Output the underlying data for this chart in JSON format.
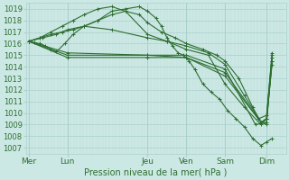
{
  "background_color": "#cce8e4",
  "grid_color_major": "#aad0cc",
  "grid_color_minor": "#bbddd9",
  "line_color": "#2d6e30",
  "xlabel_text": "Pression niveau de la mer( hPa )",
  "x_labels": [
    "Mer",
    "Lun",
    "Jeu",
    "Ven",
    "Sam",
    "Dim"
  ],
  "x_tick_positions": [
    0.0,
    0.14,
    0.43,
    0.57,
    0.71,
    0.86
  ],
  "ylim": [
    1006.5,
    1019.5
  ],
  "yticks": [
    1007,
    1008,
    1009,
    1010,
    1011,
    1012,
    1013,
    1014,
    1015,
    1016,
    1017,
    1018,
    1019
  ],
  "series": [
    {
      "x": [
        0.0,
        0.02,
        0.04,
        0.06,
        0.08,
        0.1,
        0.13,
        0.16,
        0.2,
        0.25,
        0.3,
        0.35,
        0.4,
        0.43,
        0.46,
        0.48,
        0.5,
        0.52,
        0.54,
        0.56,
        0.58,
        0.6,
        0.63,
        0.66,
        0.69,
        0.72,
        0.75,
        0.78,
        0.81,
        0.84,
        0.86,
        0.88
      ],
      "y": [
        1016.2,
        1016.1,
        1016.0,
        1015.8,
        1015.5,
        1015.3,
        1016.0,
        1016.8,
        1017.5,
        1018.0,
        1018.8,
        1019.0,
        1019.2,
        1018.8,
        1018.2,
        1017.5,
        1016.5,
        1015.8,
        1015.2,
        1015.0,
        1014.5,
        1013.8,
        1012.5,
        1011.8,
        1011.2,
        1010.2,
        1009.5,
        1008.8,
        1007.8,
        1007.2,
        1007.5,
        1007.8
      ],
      "marker": true
    },
    {
      "x": [
        0.0,
        0.14,
        0.43,
        0.57,
        0.71,
        0.84,
        0.86,
        0.88
      ],
      "y": [
        1016.2,
        1015.2,
        1015.0,
        1014.8,
        1013.5,
        1009.2,
        1009.5,
        1014.2
      ],
      "marker": true
    },
    {
      "x": [
        0.0,
        0.14,
        0.43,
        0.57,
        0.71,
        0.82,
        0.86,
        0.88
      ],
      "y": [
        1016.2,
        1015.0,
        1015.0,
        1015.0,
        1013.8,
        1009.0,
        1009.2,
        1014.5
      ],
      "marker": true
    },
    {
      "x": [
        0.0,
        0.14,
        0.43,
        0.57,
        0.71,
        0.83,
        0.86,
        0.88
      ],
      "y": [
        1016.2,
        1014.8,
        1014.8,
        1014.8,
        1013.2,
        1009.5,
        1009.8,
        1015.0
      ],
      "marker": true
    },
    {
      "x": [
        0.0,
        0.05,
        0.1,
        0.14,
        0.2,
        0.3,
        0.43,
        0.5,
        0.57,
        0.65,
        0.71,
        0.78,
        0.84,
        0.86,
        0.88
      ],
      "y": [
        1016.2,
        1016.5,
        1016.8,
        1017.2,
        1017.5,
        1017.2,
        1016.5,
        1016.2,
        1015.8,
        1015.2,
        1014.2,
        1011.5,
        1009.2,
        1009.0,
        1014.8
      ],
      "marker": true
    },
    {
      "x": [
        0.0,
        0.04,
        0.08,
        0.12,
        0.16,
        0.2,
        0.25,
        0.3,
        0.35,
        0.43,
        0.5,
        0.57,
        0.65,
        0.71,
        0.78,
        0.84,
        0.86,
        0.88
      ],
      "y": [
        1016.2,
        1016.5,
        1017.0,
        1017.5,
        1018.0,
        1018.5,
        1019.0,
        1019.2,
        1018.8,
        1016.8,
        1016.2,
        1015.5,
        1015.0,
        1012.5,
        1010.5,
        1009.0,
        1009.5,
        1014.5
      ],
      "marker": true
    },
    {
      "x": [
        0.0,
        0.04,
        0.08,
        0.12,
        0.16,
        0.2,
        0.25,
        0.3,
        0.35,
        0.4,
        0.43,
        0.48,
        0.53,
        0.57,
        0.63,
        0.68,
        0.71,
        0.76,
        0.81,
        0.84,
        0.86,
        0.88
      ],
      "y": [
        1016.2,
        1016.5,
        1016.8,
        1017.0,
        1017.2,
        1017.5,
        1018.0,
        1018.5,
        1018.8,
        1018.5,
        1017.8,
        1017.0,
        1016.5,
        1016.0,
        1015.5,
        1015.0,
        1014.5,
        1013.0,
        1010.5,
        1009.2,
        1009.5,
        1015.2
      ],
      "marker": true
    }
  ]
}
